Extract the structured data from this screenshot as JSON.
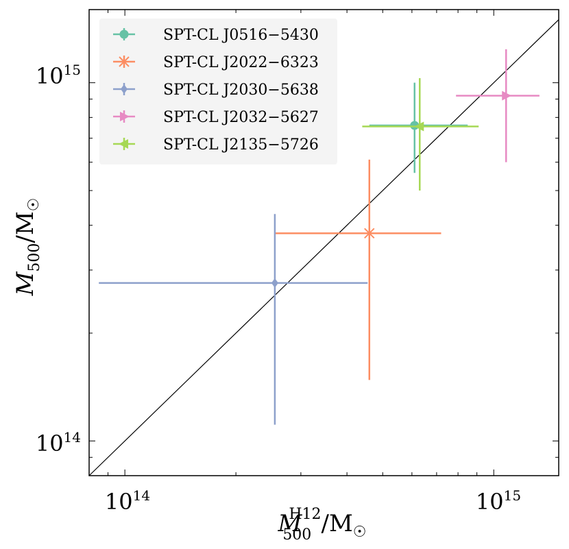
{
  "chart_data": {
    "type": "scatter",
    "xscale": "log",
    "yscale": "log",
    "xlim": [
      80000000000000,
      1500000000000000
    ],
    "ylim": [
      80000000000000,
      1600000000000000
    ],
    "xlabel": {
      "main": "M",
      "sub": "500",
      "sup": "H12",
      "rest": "/M",
      "sun": "☉"
    },
    "ylabel": {
      "main": "M",
      "sub": "500",
      "rest": "/M",
      "sun": "☉"
    },
    "x_ticks": [
      {
        "value": 100000000000000,
        "base": "10",
        "exp": "14"
      },
      {
        "value": 1000000000000000,
        "base": "10",
        "exp": "15"
      }
    ],
    "y_ticks": [
      {
        "value": 100000000000000,
        "base": "10",
        "exp": "14"
      },
      {
        "value": 1000000000000000,
        "base": "10",
        "exp": "15"
      }
    ],
    "reference_line": "one-to-one",
    "legend_position": "top-left",
    "series": [
      {
        "name": "SPT-CL J0516−5430",
        "color": "#66c2a5",
        "marker": "circle",
        "x": 610000000000000,
        "x_lo": 460000000000000,
        "x_hi": 850000000000000,
        "y": 760000000000000,
        "y_lo": 560000000000000,
        "y_hi": 1000000000000000
      },
      {
        "name": "SPT-CL J2022−6323",
        "color": "#fc8d62",
        "marker": "x",
        "x": 460000000000000,
        "x_lo": 255000000000000,
        "x_hi": 720000000000000,
        "y": 380000000000000,
        "y_lo": 148000000000000,
        "y_hi": 610000000000000
      },
      {
        "name": "SPT-CL J2030−5638",
        "color": "#8da0cb",
        "marker": "diamond",
        "x": 255000000000000,
        "x_lo": 85000000000000,
        "x_hi": 455000000000000,
        "y": 276000000000000,
        "y_lo": 111000000000000,
        "y_hi": 430000000000000
      },
      {
        "name": "SPT-CL J2032−5627",
        "color": "#e78ac3",
        "marker": "triangle-right",
        "x": 1080000000000000,
        "x_lo": 790000000000000,
        "x_hi": 1330000000000000,
        "y": 920000000000000,
        "y_lo": 600000000000000,
        "y_hi": 1240000000000000
      },
      {
        "name": "SPT-CL J2135−5726",
        "color": "#a6d854",
        "marker": "triangle-left",
        "x": 630000000000000,
        "x_lo": 440000000000000,
        "x_hi": 910000000000000,
        "y": 755000000000000,
        "y_lo": 500000000000000,
        "y_hi": 1030000000000000
      }
    ]
  }
}
